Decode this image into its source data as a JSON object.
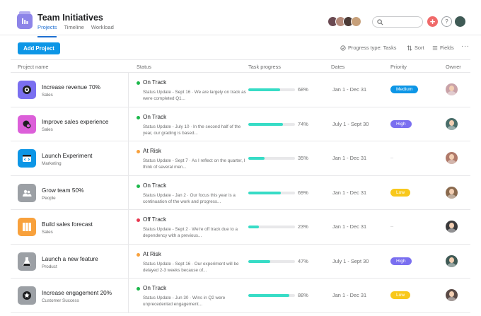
{
  "header": {
    "title": "Team Initiatives",
    "tabs": [
      {
        "label": "Projects",
        "active": true
      },
      {
        "label": "Timeline",
        "active": false
      },
      {
        "label": "Workload",
        "active": false
      }
    ],
    "add_icon": "plus-icon",
    "help_icon": "question-icon",
    "accent_color": "#1e6fd1"
  },
  "toolbar": {
    "add_project": "Add Project",
    "progress_filter": "Progress type: Tasks",
    "sort": "Sort",
    "fields": "Fields",
    "more": "···"
  },
  "table": {
    "columns": [
      "Project name",
      "Status",
      "Task progress",
      "Dates",
      "Priority",
      "Owner"
    ],
    "rows": [
      {
        "name": "Increase revenue 70%",
        "team": "Sales",
        "icon": "target-icon",
        "icon_color": "#7a6ff0",
        "status": "On Track",
        "status_color": "#1cb84b",
        "update": "Status Update - Sept 16 · We are largely on track as were completed Q1...",
        "progress": 68,
        "progress_label": "68%",
        "dates": "Jan 1 - Dec 31",
        "priority": "Medium",
        "priority_color": "#0d96e6",
        "owner_color": "#c9a2a8"
      },
      {
        "name": "Improve sales experience",
        "team": "Sales",
        "icon": "chat-icon",
        "icon_color": "#dc5fd9",
        "status": "On Track",
        "status_color": "#1cb84b",
        "update": "Status Update - July 10 · In the second half of the year, our grading is based...",
        "progress": 74,
        "progress_label": "74%",
        "dates": "July 1 - Sept 30",
        "priority": "High",
        "priority_color": "#7a6ff0",
        "owner_color": "#4a6e6a"
      },
      {
        "name": "Launch Experiment",
        "team": "Marketing",
        "icon": "code-window-icon",
        "icon_color": "#0d96e6",
        "status": "At Risk",
        "status_color": "#f8a13c",
        "update": "Status Update - Sept 7 · As I reflect on the quarter, I think of several men...",
        "progress": 35,
        "progress_label": "35%",
        "dates": "Jan 1 - Dec 31",
        "priority": "",
        "priority_color": "",
        "owner_color": "#b07a6a"
      },
      {
        "name": "Grow team 50%",
        "team": "People",
        "icon": "people-icon",
        "icon_color": "#9ca0a5",
        "status": "On Track",
        "status_color": "#1cb84b",
        "update": "Status Update - Jan 2 · Our focus this year is a continuation of the work and progress...",
        "progress": 69,
        "progress_label": "69%",
        "dates": "Jan 1 - Dec 31",
        "priority": "Low",
        "priority_color": "#f8c81c",
        "owner_color": "#8a6a4e"
      },
      {
        "name": "Build sales forecast",
        "team": "Sales",
        "icon": "columns-icon",
        "icon_color": "#f8a13c",
        "status": "Off Track",
        "status_color": "#e8384f",
        "update": "Status Update - Sept 2 · We're off track due to a dependency with a previous...",
        "progress": 23,
        "progress_label": "23%",
        "dates": "Jan 1 - Dec 31",
        "priority": "",
        "priority_color": "",
        "owner_color": "#3a3a3c"
      },
      {
        "name": "Launch a new feature",
        "team": "Product",
        "icon": "flask-icon",
        "icon_color": "#9ca0a5",
        "status": "At Risk",
        "status_color": "#f8a13c",
        "update": "Status Update - Sept 16 · Our experiment will be delayed 2-3 weeks because of...",
        "progress": 47,
        "progress_label": "47%",
        "dates": "July 1 - Sept 30",
        "priority": "High",
        "priority_color": "#7a6ff0",
        "owner_color": "#3f5a55"
      },
      {
        "name": "Increase engagement 20%",
        "team": "Customer Success",
        "icon": "star-icon",
        "icon_color": "#9ca0a5",
        "status": "On Track",
        "status_color": "#1cb84b",
        "update": "Status Update - Jun 30 · Wins in Q2 were unprecedented engagement...",
        "progress": 88,
        "progress_label": "88%",
        "dates": "Jan 1 - Dec 31",
        "priority": "Low",
        "priority_color": "#f8c81c",
        "owner_color": "#5a4a46"
      }
    ]
  }
}
